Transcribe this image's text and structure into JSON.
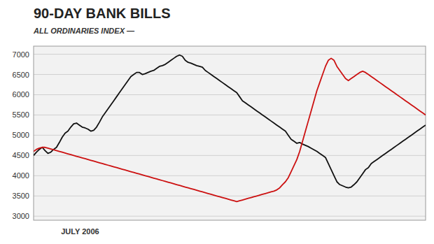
{
  "chart_data": {
    "type": "line",
    "title": "90-DAY BANK BILLS",
    "subtitle": "ALL ORDINARIES INDEX  —",
    "xlabel": "JULY 2006",
    "ylim": [
      2900,
      7200
    ],
    "yticks": [
      3000,
      3500,
      4000,
      4500,
      5000,
      5500,
      6000,
      6500,
      7000
    ],
    "grid": true,
    "tick_labels": "y",
    "series": [
      {
        "color": "#111111",
        "values": [
          4500,
          4580,
          4650,
          4700,
          4620,
          4550,
          4580,
          4650,
          4700,
          4820,
          4950,
          5050,
          5100,
          5200,
          5280,
          5300,
          5250,
          5200,
          5180,
          5150,
          5100,
          5120,
          5200,
          5320,
          5450,
          5550,
          5650,
          5750,
          5850,
          5950,
          6050,
          6150,
          6250,
          6350,
          6450,
          6500,
          6550,
          6550,
          6500,
          6520,
          6550,
          6580,
          6600,
          6650,
          6700,
          6720,
          6750,
          6800,
          6850,
          6900,
          6950,
          6980,
          6950,
          6850,
          6800,
          6780,
          6750,
          6720,
          6700,
          6680,
          6600,
          6550,
          6500,
          6450,
          6400,
          6350,
          6300,
          6250,
          6200,
          6150,
          6100,
          6050,
          5950,
          5850,
          5800,
          5750,
          5700,
          5650,
          5600,
          5550,
          5500,
          5450,
          5400,
          5350,
          5300,
          5250,
          5200,
          5150,
          5100,
          5000,
          4900,
          4850,
          4800,
          4820,
          4780,
          4750,
          4720,
          4680,
          4640,
          4600,
          4550,
          4500,
          4450,
          4300,
          4150,
          4000,
          3850,
          3780,
          3750,
          3720,
          3700,
          3720,
          3780,
          3850,
          3950,
          4050,
          4150,
          4200,
          4300,
          4350,
          4400,
          4450,
          4500,
          4550,
          4600,
          4650,
          4700,
          4750,
          4800,
          4850,
          4900,
          4950,
          5000,
          5050,
          5100,
          5150,
          5200,
          5250
        ]
      },
      {
        "color": "#cc1111",
        "values": [
          4600,
          4650,
          4680,
          4700,
          4700,
          4680,
          4660,
          4640,
          4620,
          4600,
          4580,
          4560,
          4540,
          4520,
          4500,
          4480,
          4460,
          4440,
          4420,
          4400,
          4380,
          4360,
          4340,
          4320,
          4300,
          4280,
          4260,
          4240,
          4220,
          4200,
          4180,
          4160,
          4140,
          4120,
          4100,
          4080,
          4060,
          4040,
          4020,
          4000,
          3980,
          3960,
          3940,
          3920,
          3900,
          3880,
          3860,
          3840,
          3820,
          3800,
          3780,
          3760,
          3740,
          3720,
          3700,
          3680,
          3660,
          3640,
          3620,
          3600,
          3580,
          3560,
          3540,
          3520,
          3500,
          3480,
          3460,
          3440,
          3420,
          3400,
          3380,
          3360,
          3380,
          3400,
          3420,
          3440,
          3460,
          3480,
          3500,
          3520,
          3540,
          3560,
          3580,
          3600,
          3620,
          3650,
          3700,
          3780,
          3850,
          3950,
          4100,
          4250,
          4400,
          4600,
          4850,
          5100,
          5350,
          5600,
          5850,
          6100,
          6300,
          6500,
          6700,
          6850,
          6900,
          6850,
          6700,
          6600,
          6500,
          6400,
          6350,
          6400,
          6450,
          6500,
          6550,
          6580,
          6550,
          6500,
          6450,
          6400,
          6350,
          6300,
          6250,
          6200,
          6150,
          6100,
          6050,
          6000,
          5950,
          5900,
          5850,
          5800,
          5750,
          5700,
          5650,
          5600,
          5550,
          5500
        ]
      }
    ]
  }
}
